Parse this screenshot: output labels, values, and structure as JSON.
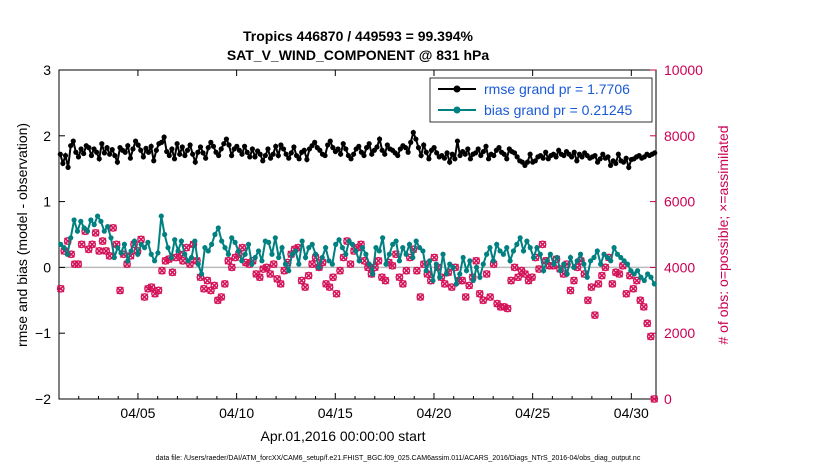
{
  "chart_data": {
    "type": "line",
    "title": "Tropics 446870 / 449593 = 99.394%",
    "subtitle": "SAT_V_WIND_COMPONENT @ 831 hPa",
    "xlabel": "Apr.01,2016 00:00:00 start",
    "ylabel": "rmse and bias (model - observation)",
    "y2label": "# of obs: o=possible; ×=assimilated",
    "footer": "data file: /Users/raeder/DAI/ATM_forcXX/CAM6_setup/f.e21.FHIST_BGC.f09_025.CAM6assim.011/ACARS_2016/Diags_NTrS_2016-04/obs_diag_output.nc",
    "xlim": [
      1.0,
      31.25
    ],
    "ylim": [
      -2,
      3
    ],
    "y2lim": [
      0,
      10000
    ],
    "xticks": [
      5,
      10,
      15,
      20,
      25,
      30
    ],
    "xtick_labels": [
      "04/05",
      "04/10",
      "04/15",
      "04/20",
      "04/25",
      "04/30"
    ],
    "yticks": [
      -2,
      -1,
      0,
      1,
      2,
      3
    ],
    "ytick_labels": [
      "−2",
      "−1",
      "0",
      "1",
      "2",
      "3"
    ],
    "y2ticks": [
      0,
      2000,
      4000,
      6000,
      8000,
      10000
    ],
    "y2tick_labels": [
      "0",
      "2000",
      "4000",
      "6000",
      "8000",
      "10000"
    ],
    "legend_position": "top-right",
    "series": [
      {
        "name": "rmse grand pr = 1.7706",
        "color": "#000000",
        "axis": "left",
        "marker": "circle",
        "values": [
          1.72,
          1.58,
          1.7,
          1.52,
          1.85,
          1.92,
          1.75,
          1.68,
          1.8,
          1.73,
          1.85,
          1.82,
          1.7,
          1.8,
          1.75,
          1.65,
          1.88,
          1.74,
          1.82,
          1.72,
          1.79,
          1.7,
          1.6,
          1.82,
          1.78,
          1.75,
          1.85,
          1.66,
          1.8,
          1.92,
          1.86,
          1.78,
          1.68,
          1.81,
          1.75,
          1.84,
          1.62,
          1.78,
          1.88,
          1.9,
          1.98,
          1.76,
          1.7,
          1.8,
          1.65,
          1.88,
          1.72,
          1.83,
          1.7,
          1.78,
          1.86,
          1.72,
          1.6,
          1.75,
          1.83,
          1.74,
          1.66,
          1.82,
          1.9,
          1.84,
          1.75,
          1.7,
          1.8,
          1.88,
          1.95,
          1.86,
          1.7,
          1.8,
          1.84,
          1.78,
          1.72,
          1.84,
          1.75,
          1.68,
          1.8,
          1.68,
          1.77,
          1.72,
          1.62,
          1.7,
          1.8,
          1.66,
          1.72,
          1.84,
          1.7,
          1.86,
          1.8,
          1.72,
          1.66,
          1.74,
          1.83,
          1.7,
          1.65,
          1.75,
          1.78,
          1.64,
          1.8,
          1.85,
          1.9,
          1.82,
          1.78,
          1.72,
          1.7,
          1.86,
          1.92,
          1.82,
          1.76,
          1.8,
          1.72,
          1.88,
          1.8,
          1.7,
          1.65,
          1.72,
          1.8,
          1.84,
          1.75,
          1.7,
          1.82,
          1.88,
          1.72,
          1.78,
          1.83,
          1.95,
          1.78,
          1.72,
          1.86,
          1.8,
          1.78,
          1.74,
          1.7,
          1.8,
          1.85,
          1.82,
          1.75,
          1.9,
          2.05,
          1.95,
          1.82,
          1.7,
          1.86,
          1.75,
          1.65,
          1.78,
          1.82,
          1.74,
          1.68,
          1.7,
          1.66,
          1.74,
          1.6,
          1.72,
          1.65,
          1.92,
          1.7,
          1.76,
          1.72,
          1.8,
          1.65,
          1.72,
          1.74,
          1.8,
          1.7,
          1.76,
          1.84,
          1.65,
          1.72,
          1.7,
          1.78,
          1.82,
          1.75,
          1.72,
          1.65,
          1.8,
          1.76,
          1.74,
          1.68,
          1.62,
          1.6,
          1.55,
          1.6,
          1.72,
          1.6,
          1.62,
          1.68,
          1.7,
          1.66,
          1.75,
          1.65,
          1.7,
          1.72,
          1.68,
          1.78,
          1.72,
          1.7,
          1.76,
          1.72,
          1.68,
          1.75,
          1.62,
          1.72,
          1.68,
          1.74,
          1.7,
          1.66,
          1.68,
          1.7,
          1.6,
          1.65,
          1.72,
          1.66,
          1.68,
          1.55,
          1.62,
          1.58,
          1.72,
          1.62,
          1.6,
          1.66,
          1.52,
          1.64,
          1.65,
          1.68,
          1.7,
          1.66,
          1.68,
          1.72,
          1.7,
          1.72,
          1.74
        ]
      },
      {
        "name": "bias grand pr = 0.21245",
        "color": "#008080",
        "axis": "left",
        "marker": "circle",
        "values": [
          0.35,
          0.3,
          0.2,
          0.45,
          0.72,
          0.55,
          0.7,
          0.6,
          0.55,
          0.72,
          0.65,
          0.78,
          0.7,
          0.55,
          0.62,
          0.45,
          0.15,
          0.3,
          0.22,
          0.35,
          0.1,
          0.25,
          0.4,
          0.2,
          0.35,
          0.3,
          0.38,
          0.2,
          0.1,
          0.22,
          0.78,
          0.5,
          0.3,
          0.15,
          0.42,
          0.25,
          0.4,
          0.2,
          0.1,
          0.15,
          0.4,
          0.05,
          -0.1,
          0.3,
          0.25,
          0.35,
          0.5,
          0.6,
          0.4,
          0.3,
          0.2,
          0.45,
          0.38,
          0.25,
          0.1,
          0.2,
          0.35,
          0.05,
          0.15,
          0.25,
          0.1,
          0.4,
          0.38,
          0.2,
          0.45,
          0.15,
          0.3,
          0.05,
          -0.05,
          0.2,
          0.25,
          0.05,
          0.4,
          0.15,
          0.3,
          0.35,
          0.2,
          0.0,
          0.15,
          0.3,
          0.1,
          0.05,
          0.35,
          0.42,
          0.3,
          0.2,
          0.4,
          0.35,
          0.25,
          0.1,
          0.3,
          0.2,
          0.05,
          -0.1,
          0.3,
          0.25,
          0.45,
          0.05,
          0.2,
          0.35,
          0.4,
          0.1,
          0.3,
          0.2,
          0.35,
          0.15,
          0.4,
          0.3,
          0.25,
          -0.05,
          0.1,
          -0.2,
          0.05,
          -0.15,
          0.2,
          -0.1,
          0.05,
          0.0,
          -0.25,
          -0.1,
          0.15,
          -0.05,
          0.1,
          -0.2,
          0.0,
          -0.15,
          0.05,
          0.2,
          0.3,
          0.1,
          0.35,
          0.25,
          0.2,
          0.3,
          0.1,
          0.25,
          0.35,
          0.45,
          0.25,
          0.4,
          0.3,
          0.15,
          0.3,
          0.2,
          -0.05,
          0.1,
          0.2,
          0.05,
          0.15,
          -0.05,
          0.05,
          -0.1,
          0.15,
          0.0,
          0.1,
          0.2,
          0.05,
          -0.15,
          0.1,
          0.15,
          0.25,
          0.05,
          0.2,
          0.15,
          0.1,
          0.3,
          0.2,
          0.15,
          0.1,
          0.05,
          -0.05,
          -0.1,
          -0.05,
          -0.15,
          -0.2,
          -0.1,
          -0.15,
          -0.25
        ]
      },
      {
        "name": "obs possible",
        "color": "#d4145a",
        "axis": "right",
        "marker": "circle",
        "values": [
          3350,
          4500,
          4800,
          4400,
          4100,
          4100,
          4700,
          5100,
          4550,
          4700,
          5050,
          4500,
          4800,
          4500,
          4350,
          5200,
          4700,
          3300,
          4400,
          4100,
          4350,
          4700,
          4500,
          4850,
          3100,
          3350,
          3400,
          3200,
          3300,
          3900,
          4200,
          4250,
          3850,
          4300,
          4400,
          4200,
          4600,
          4100,
          4700,
          4200,
          3700,
          3350,
          3600,
          3300,
          3450,
          3000,
          3100,
          3500,
          4200,
          4000,
          4300,
          4400,
          4600,
          4150,
          4100,
          4200,
          3800,
          3700,
          3950,
          4000,
          3800,
          4100,
          3650,
          3500,
          3900,
          4150,
          4400,
          4550,
          4600,
          3600,
          3400,
          3750,
          4100,
          4300,
          4000,
          4150,
          3500,
          3400,
          3700,
          3200,
          3900,
          4300,
          4800,
          4100,
          4500,
          4600,
          4700,
          4200,
          4000,
          3800,
          4000,
          4200,
          3700,
          3600,
          4150,
          4050,
          4400,
          3700,
          3500,
          3900,
          4300,
          4550,
          3900,
          3100,
          4100,
          3800,
          3600,
          4300,
          4000,
          3700,
          3500,
          3850,
          3400,
          4000,
          3600,
          3600,
          3100,
          3450,
          3700,
          4200,
          3200,
          3000,
          3800,
          3100,
          4100,
          2900,
          2800,
          2800,
          2750,
          3600,
          4000,
          3700,
          3900,
          3800,
          3600,
          3700,
          4300,
          3950,
          4700,
          4200,
          4050,
          4050,
          4250,
          3950,
          3800,
          4100,
          3300,
          3600,
          4000,
          4200,
          3800,
          3000,
          3400,
          2550,
          3500,
          3750,
          4000,
          4300,
          3500,
          3850,
          3800,
          4050,
          3200,
          3750,
          3350,
          3600,
          3000,
          2800,
          2300,
          1900,
          0
        ]
      },
      {
        "name": "obs assimilated",
        "color": "#d4145a",
        "axis": "right",
        "marker": "x",
        "values": [
          3350,
          4500,
          4800,
          4400,
          4100,
          4100,
          4700,
          5100,
          4550,
          4700,
          5050,
          4500,
          4800,
          4500,
          4350,
          5200,
          4700,
          3300,
          4400,
          4100,
          4350,
          4700,
          4500,
          4850,
          3100,
          3350,
          3400,
          3200,
          3300,
          3900,
          4200,
          4250,
          3850,
          4300,
          4400,
          4200,
          4600,
          4100,
          4700,
          4200,
          3700,
          3350,
          3600,
          3300,
          3450,
          3000,
          3100,
          3500,
          4200,
          4000,
          4300,
          4400,
          4600,
          4150,
          4100,
          4200,
          3800,
          3700,
          3950,
          4000,
          3800,
          4100,
          3650,
          3500,
          3900,
          4150,
          4400,
          4550,
          4600,
          3600,
          3400,
          3750,
          4100,
          4300,
          4000,
          4150,
          3500,
          3400,
          3700,
          3200,
          3900,
          4300,
          4800,
          4100,
          4500,
          4600,
          4700,
          4200,
          4000,
          3800,
          4000,
          4200,
          3700,
          3600,
          4150,
          4050,
          4400,
          3700,
          3500,
          3900,
          4300,
          4550,
          3900,
          3100,
          4100,
          3800,
          3600,
          4300,
          4000,
          3700,
          3500,
          3850,
          3400,
          4000,
          3600,
          3600,
          3100,
          3450,
          3700,
          4200,
          3200,
          3000,
          3800,
          3100,
          4100,
          2900,
          2800,
          2800,
          2750,
          3600,
          4000,
          3700,
          3900,
          3800,
          3600,
          3700,
          4300,
          3950,
          4700,
          4200,
          4050,
          4050,
          4250,
          3950,
          3800,
          4100,
          3300,
          3600,
          4000,
          4200,
          3800,
          3000,
          3400,
          2550,
          3500,
          3750,
          4000,
          4300,
          3500,
          3850,
          3800,
          4050,
          3200,
          3750,
          3350,
          3600,
          3000,
          2800,
          2300,
          1900,
          0
        ]
      }
    ]
  }
}
